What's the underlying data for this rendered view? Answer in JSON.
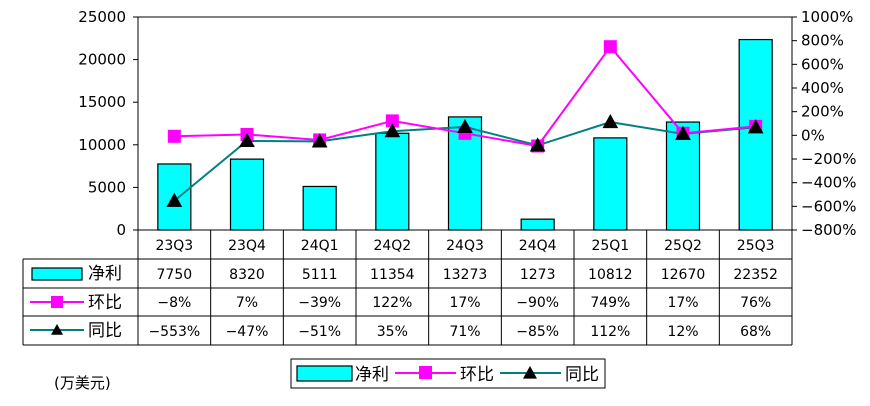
{
  "chart_data": {
    "type": "bar",
    "categories": [
      "23Q3",
      "23Q4",
      "24Q1",
      "24Q2",
      "24Q3",
      "24Q4",
      "25Q1",
      "25Q2",
      "25Q3"
    ],
    "series": [
      {
        "name": "净利",
        "kind": "bar",
        "axis": "left",
        "values": [
          7750,
          8320,
          5111,
          11354,
          13273,
          1273,
          10812,
          12670,
          22352
        ],
        "labels": [
          "7750",
          "8320",
          "5111",
          "11354",
          "13273",
          "1273",
          "10812",
          "12670",
          "22352"
        ],
        "color": "#00FFFF"
      },
      {
        "name": "环比",
        "kind": "line",
        "axis": "right",
        "marker": "square",
        "values": [
          -8,
          7,
          -39,
          122,
          17,
          -90,
          749,
          17,
          76
        ],
        "labels": [
          "-8%",
          "7%",
          "-39%",
          "122%",
          "17%",
          "-90%",
          "749%",
          "17%",
          "76%"
        ],
        "color": "#FF00FF"
      },
      {
        "name": "同比",
        "kind": "line",
        "axis": "right",
        "marker": "triangle",
        "values": [
          -553,
          -47,
          -51,
          35,
          71,
          -85,
          112,
          12,
          68
        ],
        "labels": [
          "-553%",
          "-47%",
          "-51%",
          "35%",
          "71%",
          "-85%",
          "112%",
          "12%",
          "68%"
        ],
        "color": "#008080"
      }
    ],
    "y_left": {
      "min": 0,
      "max": 25000,
      "ticks": [
        "0",
        "5000",
        "10000",
        "15000",
        "20000",
        "25000"
      ]
    },
    "y_right": {
      "min": -800,
      "max": 1000,
      "ticks": [
        "-800%",
        "-600%",
        "-400%",
        "-200%",
        "0%",
        "200%",
        "400%",
        "600%",
        "800%",
        "1000%"
      ]
    },
    "grid": false,
    "data_table": true,
    "legend_position": "bottom",
    "unit_note": "(万美元)"
  }
}
